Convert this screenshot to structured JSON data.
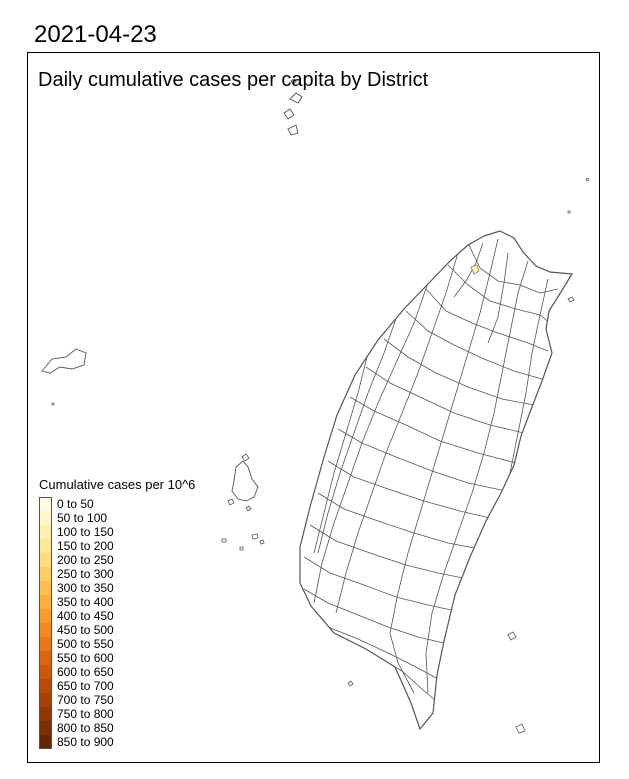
{
  "date": "2021-04-23",
  "map_title": "Daily cumulative cases per capita by District",
  "region": "Taiwan",
  "legend": {
    "title": "Cumulative cases per 10^6",
    "bins": [
      {
        "label": "0 to 50",
        "color": "#fffbe6"
      },
      {
        "label": "50 to 100",
        "color": "#fff6cc"
      },
      {
        "label": "100 to 150",
        "color": "#fff0b0"
      },
      {
        "label": "150 to 200",
        "color": "#fee896"
      },
      {
        "label": "200 to 250",
        "color": "#fedd7f"
      },
      {
        "label": "250 to 300",
        "color": "#fece66"
      },
      {
        "label": "300 to 350",
        "color": "#fdbf50"
      },
      {
        "label": "350 to 400",
        "color": "#fcae3e"
      },
      {
        "label": "400 to 450",
        "color": "#f99b2e"
      },
      {
        "label": "450 to 500",
        "color": "#f38822"
      },
      {
        "label": "500 to 550",
        "color": "#ea7618"
      },
      {
        "label": "550 to 600",
        "color": "#de6510"
      },
      {
        "label": "600 to 650",
        "color": "#cf560b"
      },
      {
        "label": "650 to 700",
        "color": "#bc4908"
      },
      {
        "label": "700 to 750",
        "color": "#a73f06"
      },
      {
        "label": "750 to 800",
        "color": "#923605"
      },
      {
        "label": "800 to 850",
        "color": "#7c2e04"
      },
      {
        "label": "850 to 900",
        "color": "#662604"
      }
    ]
  },
  "colors": {
    "district_fill": "#ffffff",
    "district_border": "#555555",
    "highlight_fill": "#fff0b0"
  }
}
